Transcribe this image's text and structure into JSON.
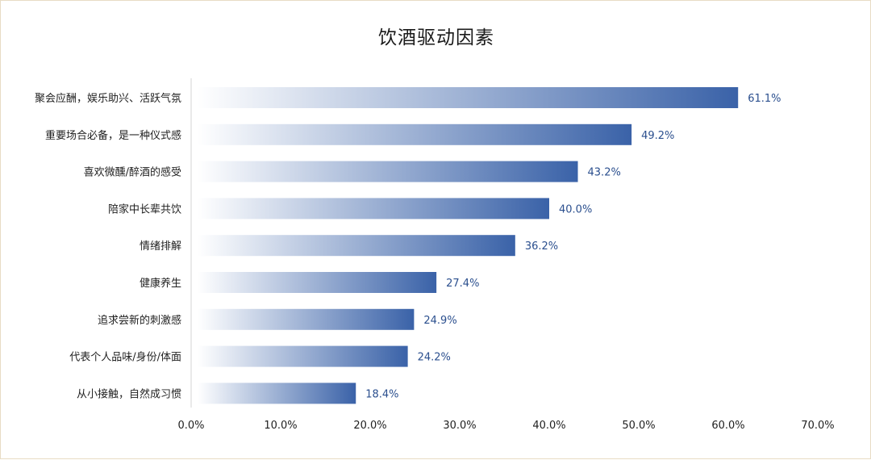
{
  "chart_data": {
    "type": "bar",
    "orientation": "horizontal",
    "title": "饮酒驱动因素",
    "categories": [
      "聚会应酬，娱乐助兴、活跃气氛",
      "重要场合必备，是一种仪式感",
      "喜欢微醺/醉酒的感受",
      "陪家中长辈共饮",
      "情绪排解",
      "健康养生",
      "追求尝新的刺激感",
      "代表个人品味/身份/体面",
      "从小接触，自然成习惯"
    ],
    "values": [
      61.1,
      49.2,
      43.2,
      40.0,
      36.2,
      27.4,
      24.9,
      24.2,
      18.4
    ],
    "data_labels": [
      "61.1%",
      "49.2%",
      "43.2%",
      "40.0%",
      "36.2%",
      "27.4%",
      "24.9%",
      "24.2%",
      "18.4%"
    ],
    "xticks": [
      "0.0%",
      "10.0%",
      "20.0%",
      "30.0%",
      "40.0%",
      "50.0%",
      "60.0%",
      "70.0%"
    ],
    "xlim": [
      0,
      70
    ],
    "grid": false,
    "legend": "none",
    "bar_gradient": [
      "#ffffff",
      "#3a62a8"
    ],
    "label_color": "#2b4f8e"
  }
}
